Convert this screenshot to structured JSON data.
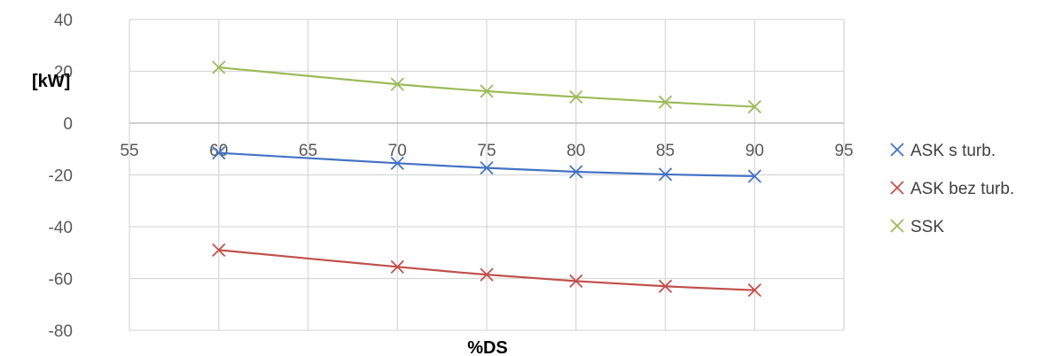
{
  "chart_data": {
    "type": "scatter",
    "xlabel": "%DS",
    "ylabel": "[kW]",
    "xlim": [
      55,
      95
    ],
    "ylim": [
      -80,
      40
    ],
    "x_ticks": [
      "55",
      "60",
      "65",
      "70",
      "75",
      "80",
      "85",
      "90",
      "95"
    ],
    "y_ticks": [
      "40",
      "20",
      "0",
      "-20",
      "-40",
      "-60",
      "-80"
    ],
    "grid": true,
    "legend_position": "right",
    "x": [
      60,
      70,
      75,
      80,
      85,
      90
    ],
    "series": [
      {
        "name": "ASK s turb.",
        "color": "#4472C4",
        "values": [
          -11.5,
          -15.5,
          -17.3,
          -18.8,
          -19.8,
          -20.5
        ]
      },
      {
        "name": "ASK bez turb.",
        "color": "#C0504D",
        "values": [
          -49,
          -55.5,
          -58.5,
          -61,
          -63,
          -64.5
        ]
      },
      {
        "name": "SSK",
        "color": "#9BBB59",
        "values": [
          21.5,
          15,
          12.3,
          10.1,
          8.1,
          6.3
        ]
      }
    ]
  }
}
